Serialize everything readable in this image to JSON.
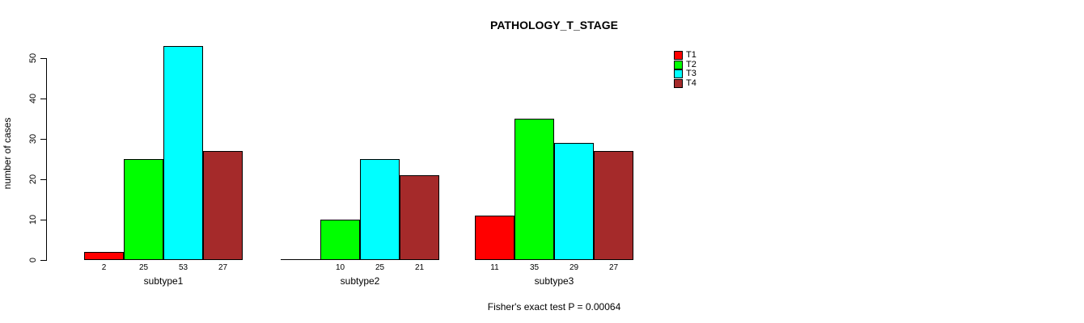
{
  "page": {
    "background": "#ffffff",
    "text_color": "#000000"
  },
  "chart_data": {
    "type": "bar",
    "title": "PATHOLOGY_T_STAGE",
    "xlabel": "",
    "ylabel": "number of cases",
    "ylim": [
      0,
      53
    ],
    "yticks": [
      0,
      10,
      20,
      30,
      40,
      50
    ],
    "grid": false,
    "categories": [
      "subtype1",
      "subtype2",
      "subtype3"
    ],
    "series": [
      {
        "name": "T1",
        "color": "#ff0000",
        "values": [
          2,
          0,
          11
        ]
      },
      {
        "name": "T2",
        "color": "#00ff00",
        "values": [
          25,
          10,
          35
        ]
      },
      {
        "name": "T3",
        "color": "#00ffff",
        "values": [
          53,
          25,
          29
        ]
      },
      {
        "name": "T4",
        "color": "#a52a2a",
        "values": [
          27,
          21,
          27
        ]
      }
    ],
    "bar_value_labels": [
      [
        "2",
        "25",
        "53",
        "27"
      ],
      [
        "",
        "10",
        "25",
        "21"
      ],
      [
        "11",
        "35",
        "29",
        "27"
      ]
    ],
    "legend": {
      "position": "top-right",
      "entries": [
        "T1",
        "T2",
        "T3",
        "T4"
      ]
    },
    "annotation": "Fisher's exact test P = 0.00064",
    "bar_border_color": "#000000",
    "axis_color": "#000000"
  }
}
